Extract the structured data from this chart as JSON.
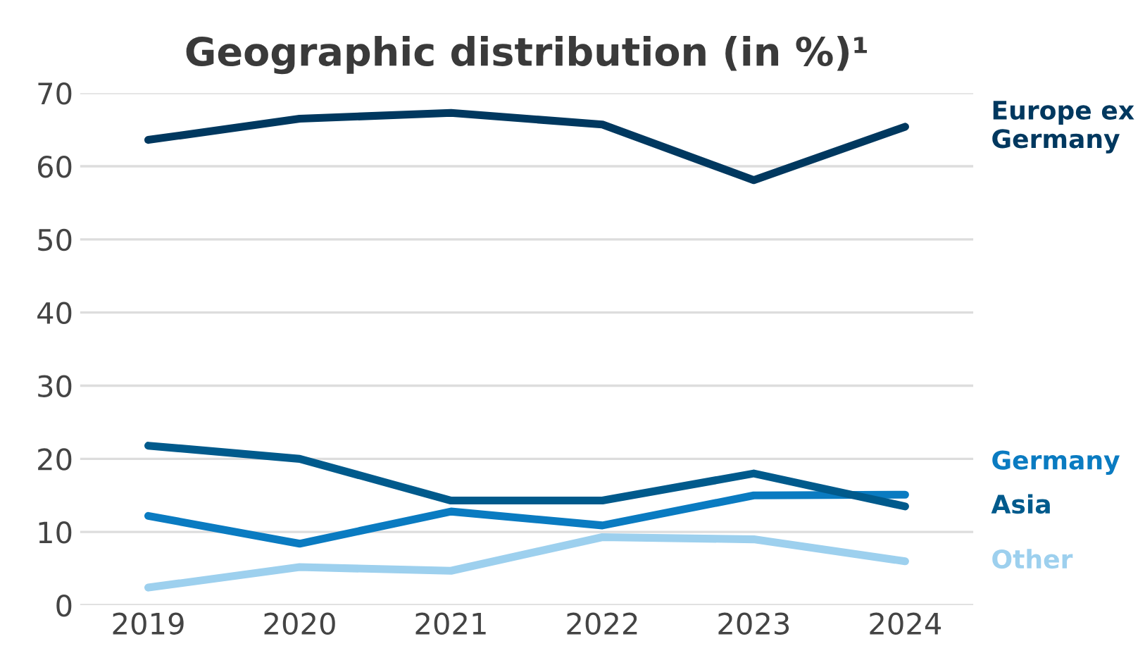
{
  "chart_data": {
    "type": "line",
    "title": "Geographic distribution (in %)¹",
    "categories": [
      "2019",
      "2020",
      "2021",
      "2022",
      "2023",
      "2024"
    ],
    "series": [
      {
        "name": "Europe ex\nGermany",
        "color": "#00385f",
        "values": [
          63.6,
          66.5,
          67.3,
          65.7,
          58.1,
          65.4
        ]
      },
      {
        "name": "Germany",
        "color": "#0a7bc1",
        "values": [
          12.2,
          8.4,
          12.8,
          10.9,
          15.0,
          15.1
        ]
      },
      {
        "name": "Asia",
        "color": "#005a8c",
        "values": [
          21.8,
          20.0,
          14.3,
          14.3,
          18.0,
          13.5
        ]
      },
      {
        "name": "Other",
        "color": "#9dd0ee",
        "values": [
          2.4,
          5.2,
          4.7,
          9.3,
          9.0,
          6.0
        ]
      }
    ],
    "ylim": [
      0,
      70
    ],
    "yticks": [
      0,
      10,
      20,
      30,
      40,
      50,
      60,
      70
    ],
    "grid": "y",
    "marker": "none",
    "line_style": "solid"
  }
}
